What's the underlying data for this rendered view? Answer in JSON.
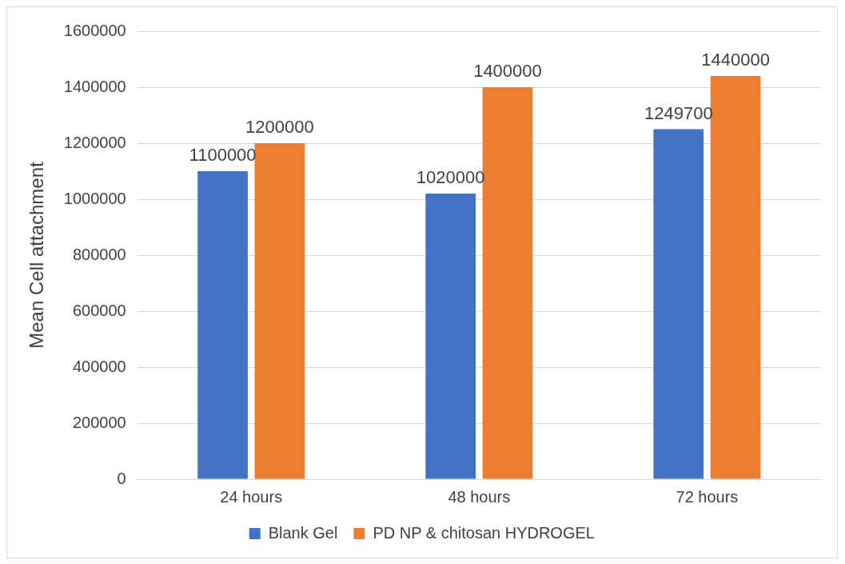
{
  "chart_data": {
    "type": "bar",
    "ylabel": "Mean Cell attachment",
    "categories": [
      "24 hours",
      "48 hours",
      "72 hours"
    ],
    "series": [
      {
        "name": "Blank Gel",
        "color": "#4472c4",
        "values": [
          1100000,
          1020000,
          1249700
        ]
      },
      {
        "name": "PD NP & chitosan HYDROGEL",
        "color": "#ed7d31",
        "values": [
          1200000,
          1400000,
          1440000
        ]
      }
    ],
    "ylim": [
      0,
      1600000
    ],
    "yticks": [
      0,
      200000,
      400000,
      600000,
      800000,
      1000000,
      1200000,
      1400000,
      1600000
    ],
    "grid": "y",
    "legend": "bottom",
    "data_labels": true
  }
}
